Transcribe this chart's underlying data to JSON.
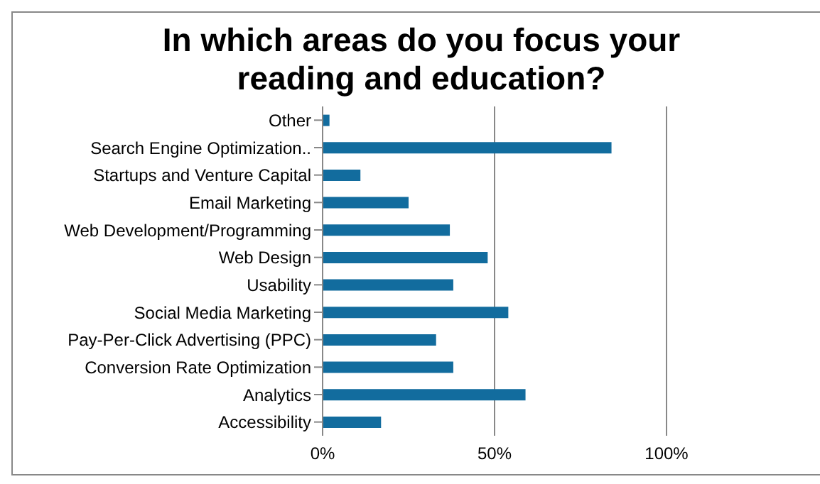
{
  "chart_data": {
    "type": "bar",
    "orientation": "horizontal",
    "title": "In which areas do you focus your reading and education?",
    "categories": [
      "Other",
      "Search Engine Optimization..",
      "Startups and Venture  Capital",
      "Email Marketing",
      "Web Development/Programming",
      "Web Design",
      "Usability",
      "Social Media Marketing",
      "Pay-Per-Click Advertising (PPC)",
      "Conversion Rate  Optimization",
      "Analytics",
      "Accessibility"
    ],
    "values": [
      2,
      84,
      11,
      25,
      37,
      48,
      38,
      54,
      33,
      38,
      59,
      17
    ],
    "color": "#126c9e",
    "xlim": [
      0,
      100
    ],
    "xticks": [
      {
        "value": 0,
        "label": "0%"
      },
      {
        "value": 50,
        "label": "50%"
      },
      {
        "value": 100,
        "label": "100%"
      }
    ],
    "grid": "x"
  }
}
